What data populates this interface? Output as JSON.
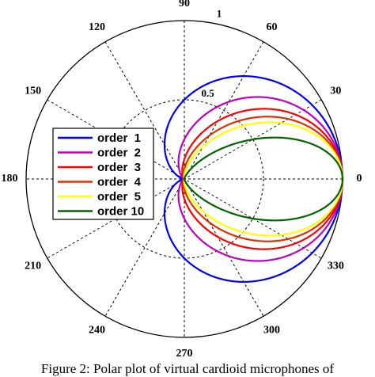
{
  "caption": "Figure 2: Polar plot of virtual cardioid microphones of",
  "chart_data": {
    "type": "polar-line",
    "rlim": [
      0,
      1
    ],
    "radial_ticks": [
      0.5,
      1
    ],
    "radial_tick_labels": [
      "0.5",
      "1"
    ],
    "angle_ticks": [
      0,
      30,
      60,
      90,
      120,
      150,
      180,
      210,
      240,
      270,
      300,
      330
    ],
    "angle_tick_labels": [
      "0",
      "30",
      "60",
      "90",
      "120",
      "150",
      "180",
      "210",
      "240",
      "270",
      "300",
      "330"
    ],
    "grid": true,
    "legend_position": "left",
    "series": [
      {
        "name": "order  1",
        "order": 1,
        "color": "#0000ff"
      },
      {
        "name": "order  2",
        "order": 2,
        "color": "#bf00bf"
      },
      {
        "name": "order  3",
        "order": 3,
        "color": "#ff0000"
      },
      {
        "name": "order  4",
        "order": 4,
        "color": "#e03000"
      },
      {
        "name": "order  5",
        "order": 5,
        "color": "#ffff00"
      },
      {
        "name": "order 10",
        "order": 10,
        "color": "#006400"
      }
    ]
  }
}
